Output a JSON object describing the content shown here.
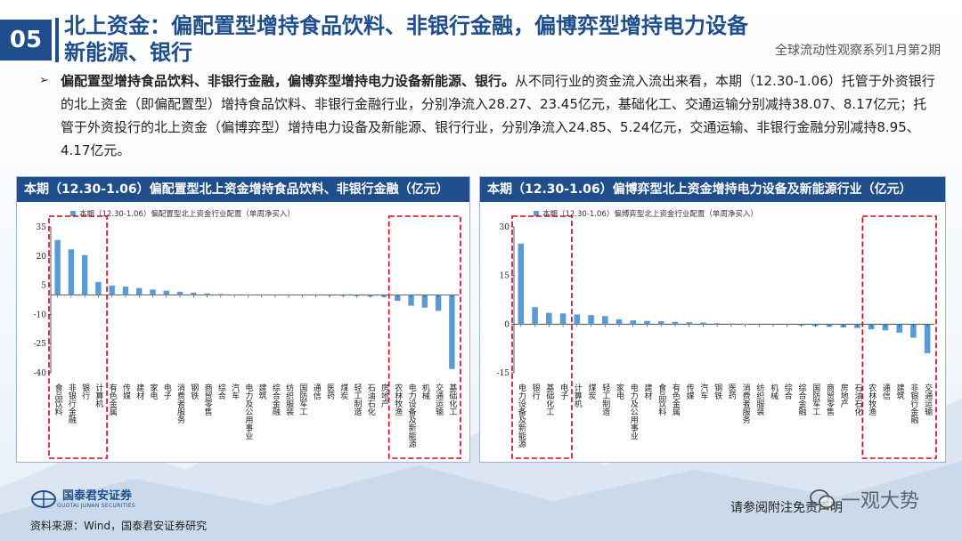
{
  "header": {
    "section_number": "05",
    "title": "北上资金：偏配置型增持食品饮料、非银行金融，偏博弈型增持电力设备新能源、银行",
    "subtitle": "全球流动性观察系列1月第2期"
  },
  "summary": {
    "bold_lead": "偏配置型增持食品饮料、非银行金融，偏博弈型增持电力设备新能源、银行。",
    "body": "从不同行业的资金流入流出来看，本期（12.30-1.06）托管于外资银行的北上资金（即偏配置型）增持食品饮料、非银行金融行业，分别净流入28.27、23.45亿元，基础化工、交通运输分别减持38.07、8.17亿元；托管于外资投行的北上资金（偏博弈型）增持电力设备及新能源、银行行业，分别净流入24.85、5.24亿元，交通运输、非银行金融分别减持8.95、4.17亿元。"
  },
  "footer": {
    "logo_name": "国泰君安证券",
    "logo_sub": "GUOTAI JUNAN SECURITIES",
    "source": "资料来源：Wind，国泰君安证券研究",
    "disclaimer": "请参阅附注免责声明",
    "watermark": "一观大势"
  },
  "colors": {
    "brand": "#1f4e8c",
    "bar": "#5b9bd5",
    "highlight": "#d0021b"
  },
  "chart_data": [
    {
      "type": "bar",
      "title": "本期（12.30-1.06）偏配置型北上资金增持食品饮料、非银行金融（亿元）",
      "legend": "本期（12.30-1.06）偏配置型北上资金行业配置（单周净买入）",
      "ylim": [
        -40,
        35
      ],
      "yticks": [
        35,
        20,
        5,
        -10,
        -25,
        -40
      ],
      "categories": [
        "食品饮料",
        "非银行金融",
        "银行",
        "计算机",
        "有色金属",
        "传媒",
        "建材",
        "家电",
        "电子",
        "消费者服务",
        "钢铁",
        "商贸零售",
        "综合",
        "汽车",
        "电力及公用事业",
        "建筑",
        "综合金融",
        "纺织服装",
        "国防军工",
        "通信",
        "医药",
        "煤炭",
        "轻工制造",
        "石油石化",
        "房地产",
        "农林牧渔",
        "电力设备及新能源",
        "机械",
        "交通运输",
        "基础化工"
      ],
      "values": [
        28.27,
        23.45,
        20.5,
        6.7,
        4.8,
        4.3,
        3.6,
        2.8,
        2.2,
        1.7,
        1.2,
        0.8,
        0.5,
        0.3,
        0.2,
        0.1,
        0.0,
        -0.1,
        -0.2,
        -0.3,
        -0.4,
        -0.5,
        -0.6,
        -0.8,
        -1.0,
        -3.0,
        -5.5,
        -6.5,
        -8.17,
        -38.07
      ],
      "highlight_groups": [
        [
          0,
          3
        ],
        [
          25,
          29
        ]
      ]
    },
    {
      "type": "bar",
      "title": "本期（12.30-1.06）偏博弈型北上资金增持电力设备及新能源行业（亿元）",
      "legend": "本期（12.30-1.06）偏博弈型北上资金行业配置（单周净买入）",
      "ylim": [
        -15,
        30
      ],
      "yticks": [
        30,
        15,
        0,
        -15
      ],
      "categories": [
        "电力设备及新能源",
        "银行",
        "基础化工",
        "电子",
        "计算机",
        "煤炭",
        "轻工制造",
        "家电",
        "电力及公用事业",
        "建材",
        "食品饮料",
        "有色金属",
        "传媒",
        "汽车",
        "钢铁",
        "医药",
        "消费者服务",
        "纺织服装",
        "机械",
        "综合",
        "综合金融",
        "国防军工",
        "商贸零售",
        "房地产",
        "石油石化",
        "农林牧渔",
        "通信",
        "建筑",
        "非银行金融",
        "交通运输"
      ],
      "values": [
        24.85,
        5.24,
        3.5,
        3.3,
        3.0,
        2.8,
        2.5,
        1.5,
        1.2,
        1.0,
        0.9,
        0.7,
        0.6,
        0.5,
        0.3,
        0.2,
        0.1,
        0.0,
        -0.1,
        -0.2,
        -0.4,
        -0.6,
        -0.8,
        -1.0,
        -1.2,
        -1.6,
        -1.9,
        -2.6,
        -4.17,
        -8.95
      ],
      "highlight_groups": [
        [
          0,
          3
        ],
        [
          25,
          29
        ]
      ]
    }
  ]
}
